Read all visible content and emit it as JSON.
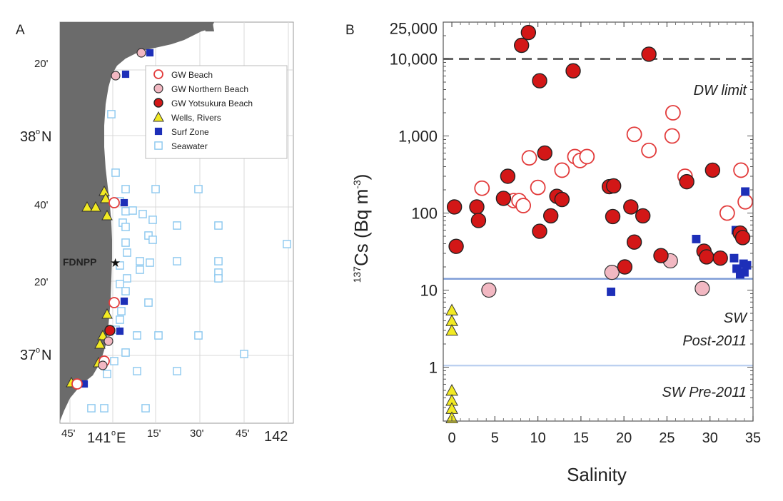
{
  "panel_a": {
    "label": "A",
    "lat_labels": [
      "20'",
      "38",
      "N",
      "40'",
      "20'",
      "37",
      "N"
    ],
    "lon_labels": [
      "45'",
      "141",
      "E",
      "15'",
      "30'",
      "45'",
      "142"
    ],
    "station_label": "FDNPP",
    "legend": [
      {
        "label": "GW Beach",
        "marker": "open-circle",
        "color": "#e23b3b"
      },
      {
        "label": "GW Northern Beach",
        "marker": "pink-circle",
        "color": "#f2b8c2"
      },
      {
        "label": "GW Yotsukura Beach",
        "marker": "red-circle",
        "color": "#d31717"
      },
      {
        "label": "Wells, Rivers",
        "marker": "triangle",
        "color": "#f2ea22"
      },
      {
        "label": "Surf Zone",
        "marker": "filled-square",
        "color": "#1d2fb8"
      },
      {
        "label": "Seawater",
        "marker": "open-square",
        "color": "#8cc8ef"
      }
    ],
    "colors": {
      "land": "#6b6b6b",
      "grid": "#d8d8d8"
    }
  },
  "chart_data": {
    "type": "scatter",
    "panel_label": "B",
    "title": "",
    "xlabel": "Salinity",
    "ylabel_sup": "137",
    "ylabel_main": "Cs (Bq m",
    "ylabel_exp": "-3",
    "ylabel_end": ")",
    "y_scale": "log",
    "xlim": [
      -1,
      35
    ],
    "ylim": [
      0.2,
      30000
    ],
    "x_ticks": [
      0,
      5,
      10,
      15,
      20,
      25,
      30,
      35
    ],
    "y_tick_labels": [
      {
        "value": 1,
        "label": "1"
      },
      {
        "value": 10,
        "label": "10"
      },
      {
        "value": 100,
        "label": "100"
      },
      {
        "value": 1000,
        "label": "1,000"
      },
      {
        "value": 10000,
        "label": "10,000"
      },
      {
        "value": 25000,
        "label": "25,000"
      }
    ],
    "reference_lines": [
      {
        "name": "DW limit",
        "value": 10000,
        "style": "dashed",
        "color": "#666666"
      },
      {
        "name": "SW Post-2011",
        "value": 14,
        "style": "solid",
        "color": "#7a9ad6"
      },
      {
        "name": "SW Pre-2011",
        "value": 1.05,
        "style": "solid",
        "color": "#bcd0f0"
      }
    ],
    "annotations": {
      "dw_limit": "DW limit",
      "sw_post_1": "SW",
      "sw_post_2": "Post-2011",
      "sw_pre": "SW Pre-2011"
    },
    "series": [
      {
        "name": "GW Beach",
        "marker": "open-circle",
        "color": "#e23b3b",
        "points": [
          [
            3.5,
            210
          ],
          [
            7.2,
            145
          ],
          [
            7.8,
            145
          ],
          [
            8.3,
            125
          ],
          [
            9,
            520
          ],
          [
            10,
            215
          ],
          [
            12.8,
            360
          ],
          [
            14.3,
            540
          ],
          [
            14.9,
            480
          ],
          [
            15.7,
            540
          ],
          [
            21.2,
            1050
          ],
          [
            22.9,
            650
          ],
          [
            25.7,
            2000
          ],
          [
            25.6,
            1000
          ],
          [
            27.1,
            300
          ],
          [
            32,
            100
          ],
          [
            33.6,
            360
          ],
          [
            34.1,
            140
          ]
        ]
      },
      {
        "name": "GW Northern Beach",
        "marker": "pink-circle",
        "color": "#f2b8c2",
        "points": [
          [
            4.3,
            10
          ],
          [
            18.6,
            17
          ],
          [
            25.4,
            24
          ],
          [
            29.1,
            10.5
          ]
        ]
      },
      {
        "name": "GW Yotsukura Beach",
        "marker": "red-circle",
        "color": "#d31717",
        "points": [
          [
            0.3,
            120
          ],
          [
            0.5,
            37
          ],
          [
            2.9,
            120
          ],
          [
            3.1,
            80
          ],
          [
            6,
            155
          ],
          [
            6.5,
            300
          ],
          [
            8.1,
            15000
          ],
          [
            8.9,
            22000
          ],
          [
            10.2,
            5200
          ],
          [
            10.2,
            58
          ],
          [
            10.8,
            600
          ],
          [
            11.5,
            92
          ],
          [
            12.2,
            165
          ],
          [
            12.8,
            150
          ],
          [
            14.1,
            7000
          ],
          [
            18.3,
            220
          ],
          [
            18.7,
            90
          ],
          [
            18.8,
            225
          ],
          [
            20.1,
            20
          ],
          [
            20.8,
            120
          ],
          [
            21.2,
            42
          ],
          [
            22.2,
            92
          ],
          [
            22.9,
            11500
          ],
          [
            24.3,
            28
          ],
          [
            27.3,
            255
          ],
          [
            29.3,
            32
          ],
          [
            29.6,
            27
          ],
          [
            30.3,
            360
          ],
          [
            31.2,
            26
          ],
          [
            33.5,
            55
          ],
          [
            33.8,
            48
          ]
        ]
      },
      {
        "name": "Wells, Rivers",
        "marker": "triangle",
        "color": "#f2ea22",
        "points": [
          [
            0,
            5.5
          ],
          [
            0,
            4
          ],
          [
            0,
            3
          ],
          [
            0,
            0.5
          ],
          [
            0,
            0.37
          ],
          [
            0,
            0.29
          ],
          [
            0,
            0.22
          ]
        ]
      },
      {
        "name": "Surf Zone",
        "marker": "filled-square",
        "color": "#1d2fb8",
        "points": [
          [
            18.5,
            9.5
          ],
          [
            28.4,
            46
          ],
          [
            32.8,
            26
          ],
          [
            33,
            60
          ],
          [
            33.1,
            19
          ],
          [
            33.5,
            16
          ],
          [
            33.9,
            22
          ],
          [
            34,
            17
          ],
          [
            34.1,
            190
          ],
          [
            34.3,
            21
          ]
        ]
      }
    ]
  }
}
